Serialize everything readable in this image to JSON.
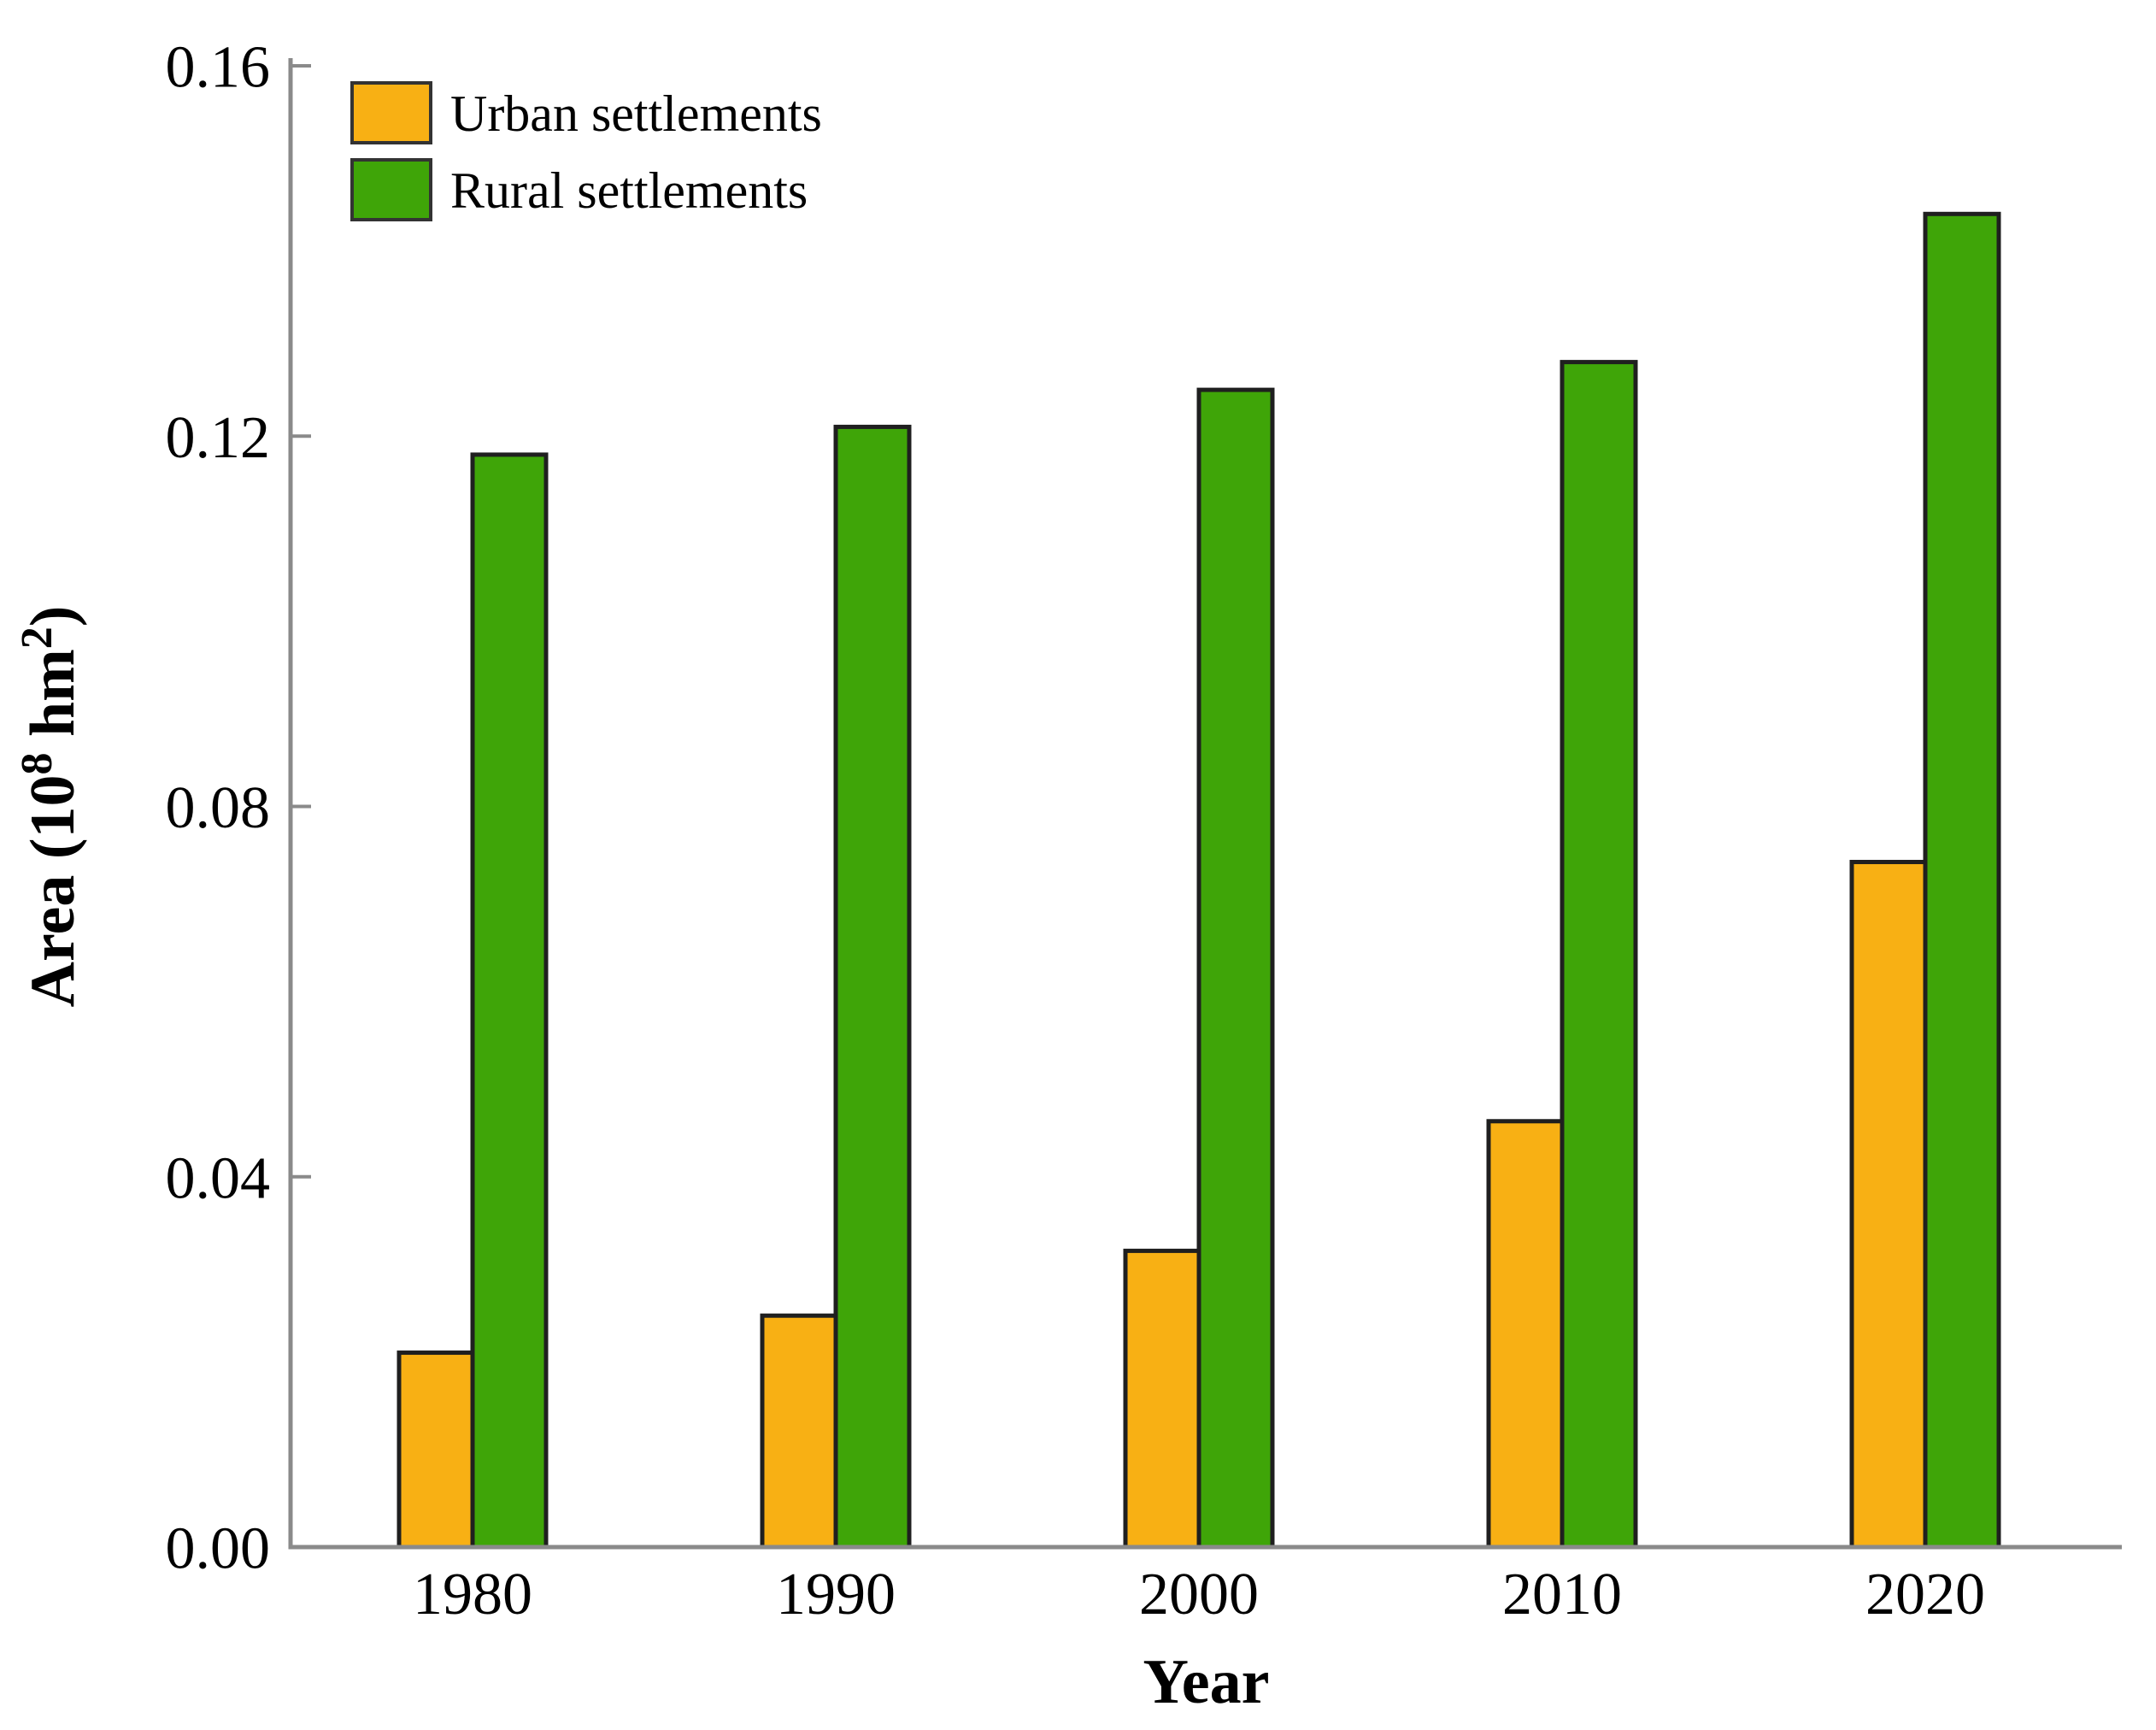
{
  "chart_data": {
    "type": "bar",
    "title": "",
    "categories": [
      "1980",
      "1990",
      "2000",
      "2010",
      "2020"
    ],
    "series": [
      {
        "name": "Urban settlements",
        "color": "#F8B014",
        "values": [
          0.021,
          0.025,
          0.032,
          0.046,
          0.074
        ]
      },
      {
        "name": "Rural settlements",
        "color": "#3FA508",
        "values": [
          0.118,
          0.121,
          0.125,
          0.128,
          0.144
        ]
      }
    ],
    "xlabel": "Year",
    "ylabel": "Area (10⁸ hm²)",
    "ylabel_parts": [
      {
        "text": "Area (10",
        "superscript": false
      },
      {
        "text": "8",
        "superscript": true
      },
      {
        "text": " hm",
        "superscript": false
      },
      {
        "text": "2",
        "superscript": true
      },
      {
        "text": ")",
        "superscript": false
      }
    ],
    "ylim": [
      0,
      0.16
    ],
    "yticks": [
      "0.00",
      "0.04",
      "0.08",
      "0.12",
      "0.16"
    ],
    "grid": false,
    "legend_position": "top-left",
    "colors": {
      "axis": "#8a8a8a",
      "bar_border": "#1f1f1f",
      "text": "#000000"
    }
  }
}
